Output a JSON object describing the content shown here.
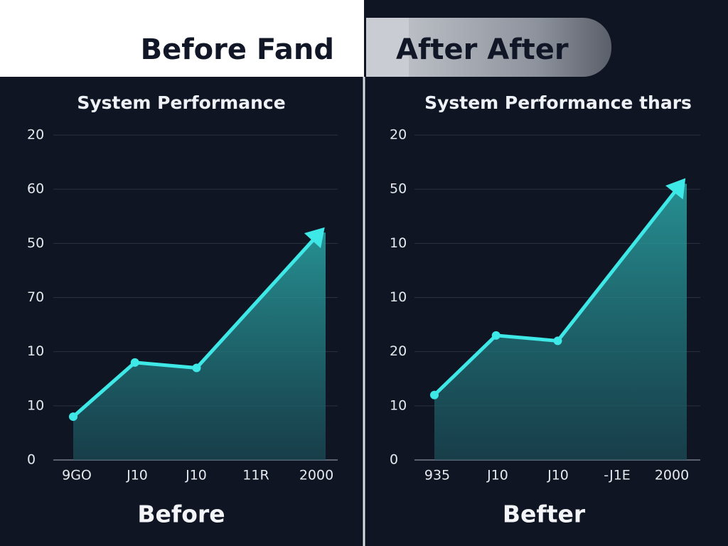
{
  "header": {
    "left": "Before Fand",
    "right": "After After"
  },
  "chart_data": [
    {
      "type": "line",
      "title": "System Performance",
      "caption": "Before",
      "categories": [
        "9GO",
        "J10",
        "J10",
        "11R",
        "2000"
      ],
      "y_axis_labels": [
        "20",
        "60",
        "50",
        "70",
        "10",
        "10",
        "0"
      ],
      "ylim": [
        0,
        6
      ],
      "xlim": [
        0,
        4
      ],
      "x": [
        0,
        1,
        2,
        4
      ],
      "values": [
        0.8,
        1.8,
        1.7,
        4.2
      ],
      "color": "#3ee8e6",
      "grid": true
    },
    {
      "type": "line",
      "title": "System Performance thars",
      "caption": "Befter",
      "categories": [
        "935",
        "J10",
        "J10",
        "-J1E",
        "2000"
      ],
      "y_axis_labels": [
        "20",
        "50",
        "10",
        "10",
        "20",
        "10",
        "0"
      ],
      "ylim": [
        0,
        6
      ],
      "xlim": [
        0,
        4
      ],
      "x": [
        0,
        1,
        2,
        4
      ],
      "values": [
        1.2,
        2.3,
        2.2,
        5.1
      ],
      "color": "#3ee8e6",
      "grid": true
    }
  ]
}
